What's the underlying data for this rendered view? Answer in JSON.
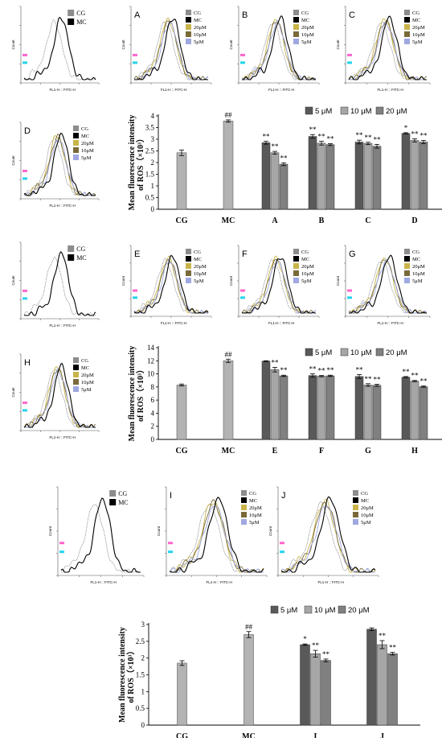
{
  "colors": {
    "CG": "#8c8c8c",
    "MC": "#000000",
    "20uM": "#c8b44a",
    "10uM": "#7a6a3a",
    "5uM": "#9fa8e0",
    "bar5": "#595959",
    "bar10": "#a6a6a6",
    "bar20": "#808080",
    "barControl": "#b3b3b3",
    "fluo_pink": "#ff66cc",
    "fluo_cyan": "#22d3ee"
  },
  "histogram_texts": {
    "count": "Count",
    "fitc_axis": "FL1-H :: FITC-H",
    "legend_cg_mc": [
      "CG",
      "MC"
    ],
    "legend_full": [
      "CG",
      "MC",
      "20μM",
      "10μM",
      "5μM"
    ]
  },
  "histogram_panels": [
    {
      "label": "",
      "legend": "pair"
    },
    {
      "label": "A",
      "legend": "full"
    },
    {
      "label": "B",
      "legend": "full"
    },
    {
      "label": "C",
      "legend": "full"
    },
    {
      "label": "D",
      "legend": "full"
    },
    {
      "label": "",
      "legend": "pair"
    },
    {
      "label": "E",
      "legend": "full"
    },
    {
      "label": "F",
      "legend": "full"
    },
    {
      "label": "G",
      "legend": "full"
    },
    {
      "label": "H",
      "legend": "full"
    },
    {
      "label": "",
      "legend": "pair"
    },
    {
      "label": "I",
      "legend": "full"
    },
    {
      "label": "J",
      "legend": "full"
    }
  ],
  "chart_data": [
    {
      "type": "bar",
      "ylabel": [
        "Mean fluorescence intensity",
        "of ROS（×10³）"
      ],
      "ylim": [
        0,
        4
      ],
      "yticks": [
        "0",
        "0.5",
        "1",
        "1.5",
        "2",
        "2.5",
        "3",
        "3.5",
        "4"
      ],
      "legend": [
        "5 μM",
        "10 μM",
        "20 μM"
      ],
      "legend_position": "top-right",
      "controls": [
        {
          "category": "CG",
          "value": 2.42,
          "err": 0.12,
          "mark": ""
        },
        {
          "category": "MC",
          "value": 3.78,
          "err": 0.05,
          "mark": "##"
        }
      ],
      "groups": [
        {
          "category": "A",
          "values": [
            2.85,
            2.42,
            1.93
          ],
          "errs": [
            0.06,
            0.06,
            0.06
          ],
          "marks": [
            "**",
            "**",
            "**"
          ]
        },
        {
          "category": "B",
          "values": [
            3.12,
            2.83,
            2.77
          ],
          "errs": [
            0.08,
            0.08,
            0.04
          ],
          "marks": [
            "**",
            "**",
            "**"
          ]
        },
        {
          "category": "C",
          "values": [
            2.88,
            2.82,
            2.7
          ],
          "errs": [
            0.08,
            0.05,
            0.08
          ],
          "marks": [
            "**",
            "**",
            "**"
          ]
        },
        {
          "category": "D",
          "values": [
            3.25,
            2.95,
            2.88
          ],
          "errs": [
            0.03,
            0.07,
            0.07
          ],
          "marks": [
            "*",
            "**",
            "**"
          ]
        }
      ]
    },
    {
      "type": "bar",
      "ylabel": [
        "Mean fluorescence intensity",
        "of ROS（×10³）"
      ],
      "ylim": [
        0,
        14
      ],
      "yticks": [
        "0",
        "2",
        "4",
        "6",
        "8",
        "10",
        "12",
        "14"
      ],
      "legend": [
        "5 μM",
        "10 μM",
        "20 μM"
      ],
      "legend_position": "top-right",
      "controls": [
        {
          "category": "CG",
          "value": 8.3,
          "err": 0.15,
          "mark": ""
        },
        {
          "category": "MC",
          "value": 12.0,
          "err": 0.25,
          "mark": "##"
        }
      ],
      "groups": [
        {
          "category": "E",
          "values": [
            11.95,
            10.65,
            9.7
          ],
          "errs": [
            0.05,
            0.35,
            0.1
          ],
          "marks": [
            "",
            "**",
            "**"
          ]
        },
        {
          "category": "F",
          "values": [
            9.75,
            9.65,
            9.7
          ],
          "errs": [
            0.25,
            0.1,
            0.1
          ],
          "marks": [
            "**",
            "**",
            "**"
          ]
        },
        {
          "category": "G",
          "values": [
            9.6,
            8.3,
            8.25
          ],
          "errs": [
            0.3,
            0.2,
            0.15
          ],
          "marks": [
            "**",
            "**",
            "**"
          ]
        },
        {
          "category": "H",
          "values": [
            9.5,
            8.9,
            8.05
          ],
          "errs": [
            0.1,
            0.1,
            0.1
          ],
          "marks": [
            "**",
            "**",
            "**"
          ]
        }
      ]
    },
    {
      "type": "bar",
      "ylabel": [
        "Mean fluorescence intensity",
        "of ROS（×10³）"
      ],
      "ylim": [
        0,
        3
      ],
      "yticks": [
        "0",
        "0.5",
        "1",
        "1.5",
        "2",
        "2.5",
        "3"
      ],
      "legend": [
        "5 μM",
        "10 μM",
        "20 μM"
      ],
      "legend_position": "top-right",
      "controls": [
        {
          "category": "CG",
          "value": 1.85,
          "err": 0.07,
          "mark": ""
        },
        {
          "category": "MC",
          "value": 2.7,
          "err": 0.09,
          "mark": "##"
        }
      ],
      "groups": [
        {
          "category": "I",
          "values": [
            2.4,
            2.13,
            1.93
          ],
          "errs": [
            0.02,
            0.1,
            0.04
          ],
          "marks": [
            "*",
            "**",
            "**"
          ]
        },
        {
          "category": "J",
          "values": [
            2.86,
            2.4,
            2.13
          ],
          "errs": [
            0.04,
            0.12,
            0.04
          ],
          "marks": [
            "",
            "**",
            "**"
          ]
        }
      ]
    }
  ]
}
